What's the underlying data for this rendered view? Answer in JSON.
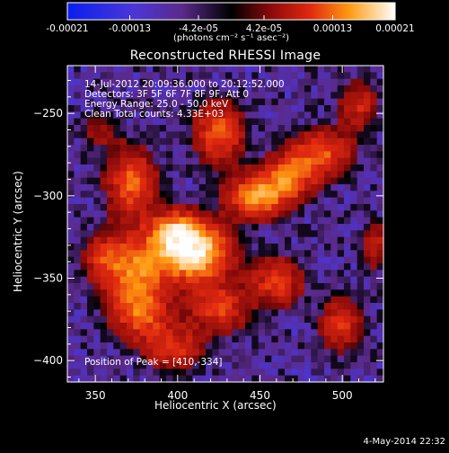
{
  "chart_data": {
    "type": "heatmap",
    "title": "Reconstructed RHESSI Image",
    "xlabel": "Heliocentric X (arcsec)",
    "ylabel": "Heliocentric Y (arcsec)",
    "xlim": [
      333,
      525
    ],
    "ylim": [
      -413,
      -221
    ],
    "xticks": [
      350,
      400,
      450,
      500
    ],
    "yticks": [
      -400,
      -350,
      -300,
      -250
    ],
    "xtick_labels": [
      "350",
      "400",
      "450",
      "500"
    ],
    "ytick_labels": [
      "−400",
      "−350",
      "−300",
      "−250"
    ],
    "colorbar": {
      "range": [
        -0.00021,
        0.00021
      ],
      "tick_values": [
        -0.00021,
        -0.00013,
        -4.2e-05,
        4.2e-05,
        0.00013,
        0.00021
      ],
      "tick_labels": [
        "-0.00021",
        "-0.00013",
        "-4.2e-05",
        "4.2e-05",
        "0.00013",
        "0.00021"
      ],
      "unit_label": "(photons cm⁻² s⁻¹ asec⁻²)"
    },
    "info_lines": [
      "14-Jul-2012 20:09:36.000 to 20:12:52.000",
      "Detectors: 3F 5F 6F 7F 8F 9F, Att 0",
      "Energy Range: 25.0 - 50.0 keV",
      "Clean     Total counts: 4.33E+03"
    ],
    "peak_label": "Position of Peak = [410,-334]",
    "peak_position": [
      410,
      -334
    ],
    "grid": false,
    "colormap": "blue-purple-black-red-yellow-white",
    "emission_regions": [
      {
        "x": 410,
        "y": -334,
        "sx": 14,
        "sy": 12,
        "amp": 1.0
      },
      {
        "x": 398,
        "y": -322,
        "sx": 10,
        "sy": 9,
        "amp": 0.55
      },
      {
        "x": 375,
        "y": -345,
        "sx": 13,
        "sy": 16,
        "amp": 0.6
      },
      {
        "x": 378,
        "y": -372,
        "sx": 12,
        "sy": 11,
        "amp": 0.45
      },
      {
        "x": 372,
        "y": -292,
        "sx": 10,
        "sy": 14,
        "amp": 0.55
      },
      {
        "x": 355,
        "y": -338,
        "sx": 8,
        "sy": 10,
        "amp": 0.35
      },
      {
        "x": 448,
        "y": -300,
        "sx": 12,
        "sy": 9,
        "amp": 0.7
      },
      {
        "x": 468,
        "y": -288,
        "sx": 10,
        "sy": 10,
        "amp": 0.55
      },
      {
        "x": 488,
        "y": -275,
        "sx": 12,
        "sy": 10,
        "amp": 0.5
      },
      {
        "x": 425,
        "y": -262,
        "sx": 10,
        "sy": 12,
        "amp": 0.55
      },
      {
        "x": 425,
        "y": -368,
        "sx": 12,
        "sy": 10,
        "amp": 0.45
      },
      {
        "x": 398,
        "y": -392,
        "sx": 12,
        "sy": 9,
        "amp": 0.4
      },
      {
        "x": 460,
        "y": -352,
        "sx": 11,
        "sy": 10,
        "amp": 0.45
      },
      {
        "x": 500,
        "y": -378,
        "sx": 9,
        "sy": 11,
        "amp": 0.4
      },
      {
        "x": 510,
        "y": -245,
        "sx": 8,
        "sy": 10,
        "amp": 0.35
      },
      {
        "x": 520,
        "y": -330,
        "sx": 6,
        "sy": 10,
        "amp": 0.3
      },
      {
        "x": 352,
        "y": -260,
        "sx": 8,
        "sy": 8,
        "amp": 0.2
      }
    ]
  }
}
